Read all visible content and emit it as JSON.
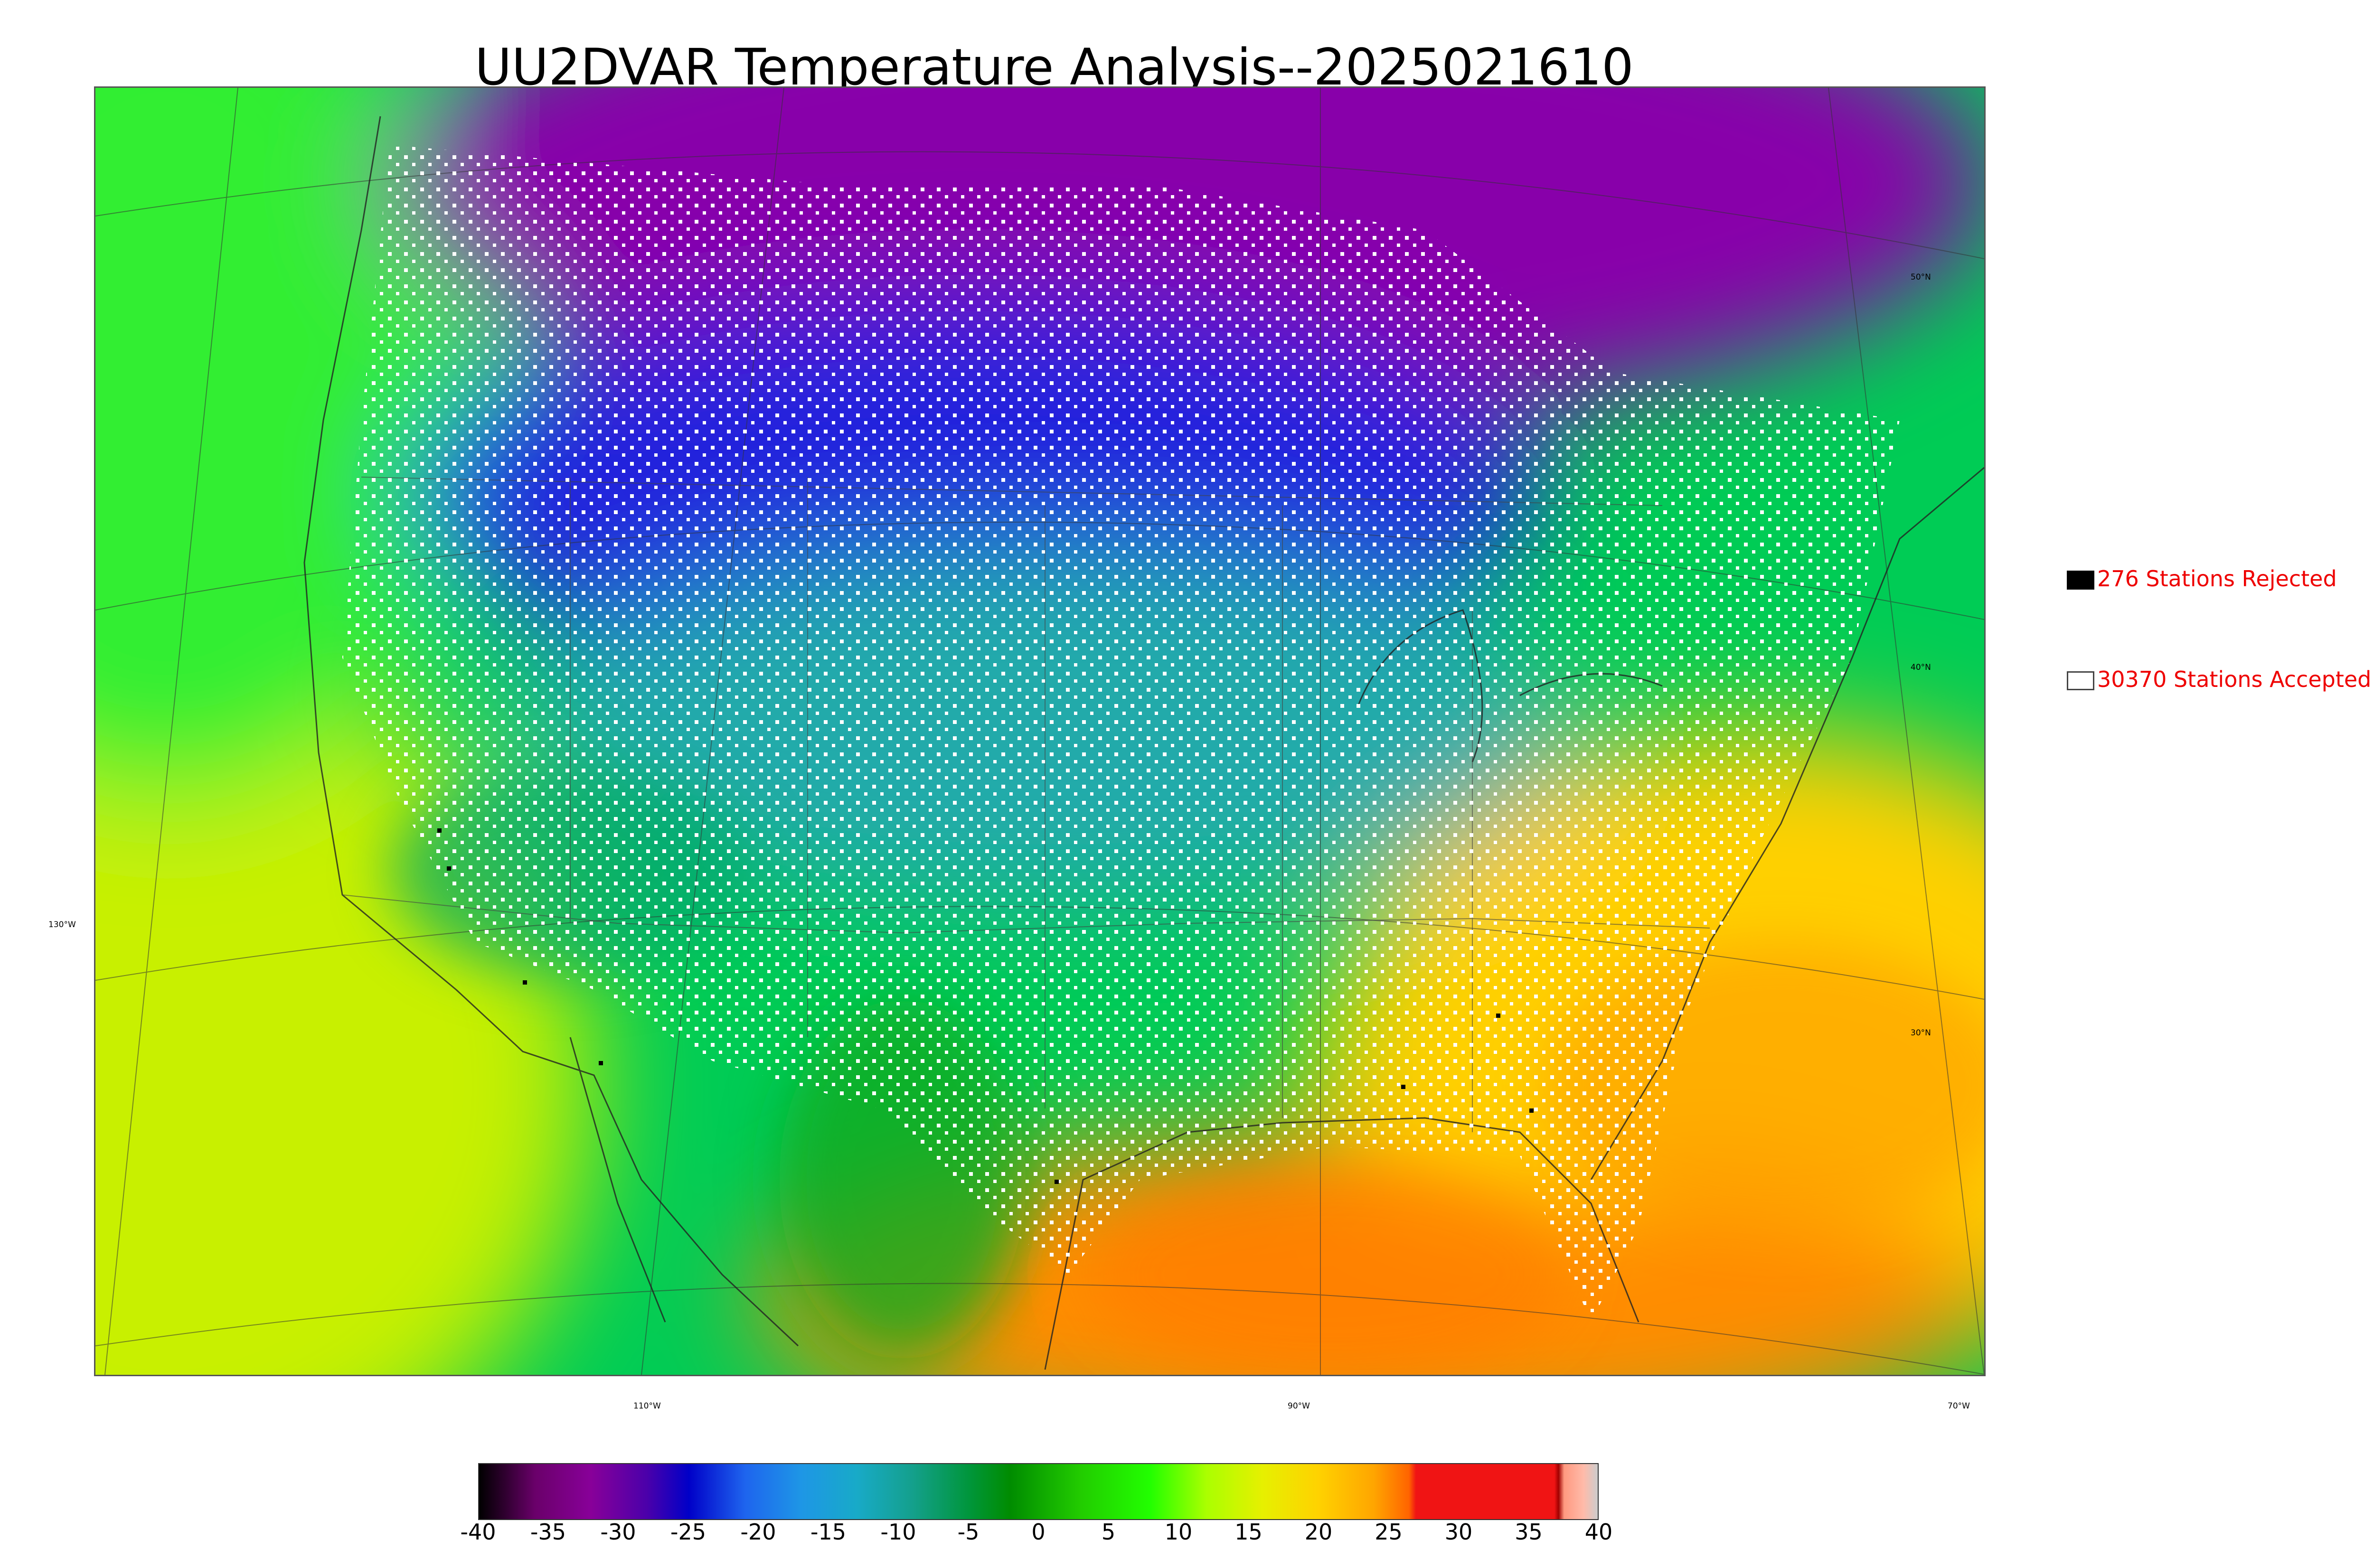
{
  "title": "UU2DVAR Temperature Analysis--2025021610",
  "map": {
    "graticule_labels": {
      "lat_50": "50°N",
      "lat_40": "40°N",
      "lat_30": "30°N",
      "lon_130": "130°W",
      "lon_110": "110°W",
      "lon_90": "90°W",
      "lon_70": "70°W"
    },
    "colors": {
      "frame": "#555555",
      "ocean_pacific_north": "#33ee33",
      "ocean_pacific_south": "#c8f000",
      "ocean_atlantic": "#ffd000",
      "gulf": "#ff8c00",
      "canada_cold": "#8800aa",
      "plains_cold": "#2222dd",
      "midwest": "#22aaaa",
      "east": "#00cc55",
      "south": "#ffd000",
      "station_accepted": "#ffffff",
      "station_rejected": "#000000"
    }
  },
  "legend": {
    "rejected": {
      "label": "276 Stations Rejected",
      "color": "#000000"
    },
    "accepted": {
      "label": "30370 Stations Accepted",
      "color": "#ffffff"
    },
    "text_color": "#ee0000"
  },
  "colorbar": {
    "ticks": [
      "-40",
      "-35",
      "-30",
      "-25",
      "-20",
      "-15",
      "-10",
      "-5",
      "0",
      "5",
      "10",
      "15",
      "20",
      "25",
      "30",
      "35",
      "40"
    ],
    "range": [
      -40,
      40
    ],
    "stops": [
      {
        "v": -40,
        "c": "#000000"
      },
      {
        "v": -38,
        "c": "#330033"
      },
      {
        "v": -36,
        "c": "#6a006a"
      },
      {
        "v": -32,
        "c": "#880099"
      },
      {
        "v": -28,
        "c": "#4b00aa"
      },
      {
        "v": -25,
        "c": "#0000c8"
      },
      {
        "v": -21,
        "c": "#1e64ee"
      },
      {
        "v": -17,
        "c": "#1e96e6"
      },
      {
        "v": -13,
        "c": "#18aac8"
      },
      {
        "v": -9,
        "c": "#14a08c"
      },
      {
        "v": -5,
        "c": "#00963c"
      },
      {
        "v": -2,
        "c": "#008c00"
      },
      {
        "v": 3,
        "c": "#22cc00"
      },
      {
        "v": 8,
        "c": "#22ff00"
      },
      {
        "v": 12,
        "c": "#aaff00"
      },
      {
        "v": 16,
        "c": "#e6f000"
      },
      {
        "v": 20,
        "c": "#ffd200"
      },
      {
        "v": 24,
        "c": "#ffa500"
      },
      {
        "v": 26.5,
        "c": "#ff6400"
      },
      {
        "v": 27,
        "c": "#f01414"
      },
      {
        "v": 36.9,
        "c": "#f01414"
      },
      {
        "v": 37.2,
        "c": "#a00000"
      },
      {
        "v": 37.6,
        "c": "#ff9980"
      },
      {
        "v": 39,
        "c": "#ffbbaa"
      },
      {
        "v": 40,
        "c": "#cccccc"
      }
    ]
  }
}
